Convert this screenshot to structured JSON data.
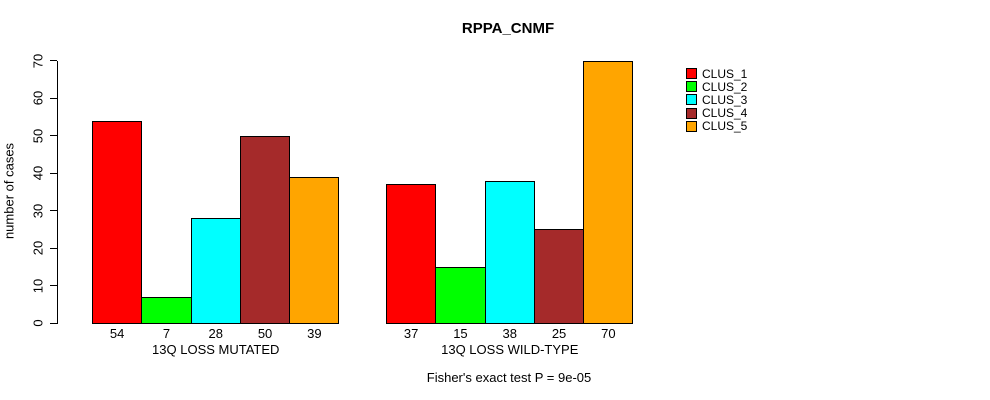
{
  "chart_data": {
    "type": "bar",
    "title": "RPPA_CNMF",
    "ylabel": "number of cases",
    "xlabel": "",
    "ylim": [
      0,
      70
    ],
    "yticks": [
      0,
      10,
      20,
      30,
      40,
      50,
      60,
      70
    ],
    "grid": false,
    "legend_position": "right",
    "show_bar_values": true,
    "categories": [
      "13Q LOSS MUTATED",
      "13Q LOSS WILD-TYPE"
    ],
    "series": [
      {
        "name": "CLUS_1",
        "color": "#FF0000",
        "values": [
          54,
          37
        ]
      },
      {
        "name": "CLUS_2",
        "color": "#00FF00",
        "values": [
          7,
          15
        ]
      },
      {
        "name": "CLUS_3",
        "color": "#00FFFF",
        "values": [
          28,
          38
        ]
      },
      {
        "name": "CLUS_4",
        "color": "#A52A2A",
        "values": [
          50,
          25
        ]
      },
      {
        "name": "CLUS_5",
        "color": "#FFA500",
        "values": [
          39,
          70
        ]
      }
    ],
    "annotation": "Fisher's exact test P = 9e-05"
  },
  "colors": {
    "axis": "#000000",
    "background": "#FFFFFF",
    "text": "#000000"
  }
}
